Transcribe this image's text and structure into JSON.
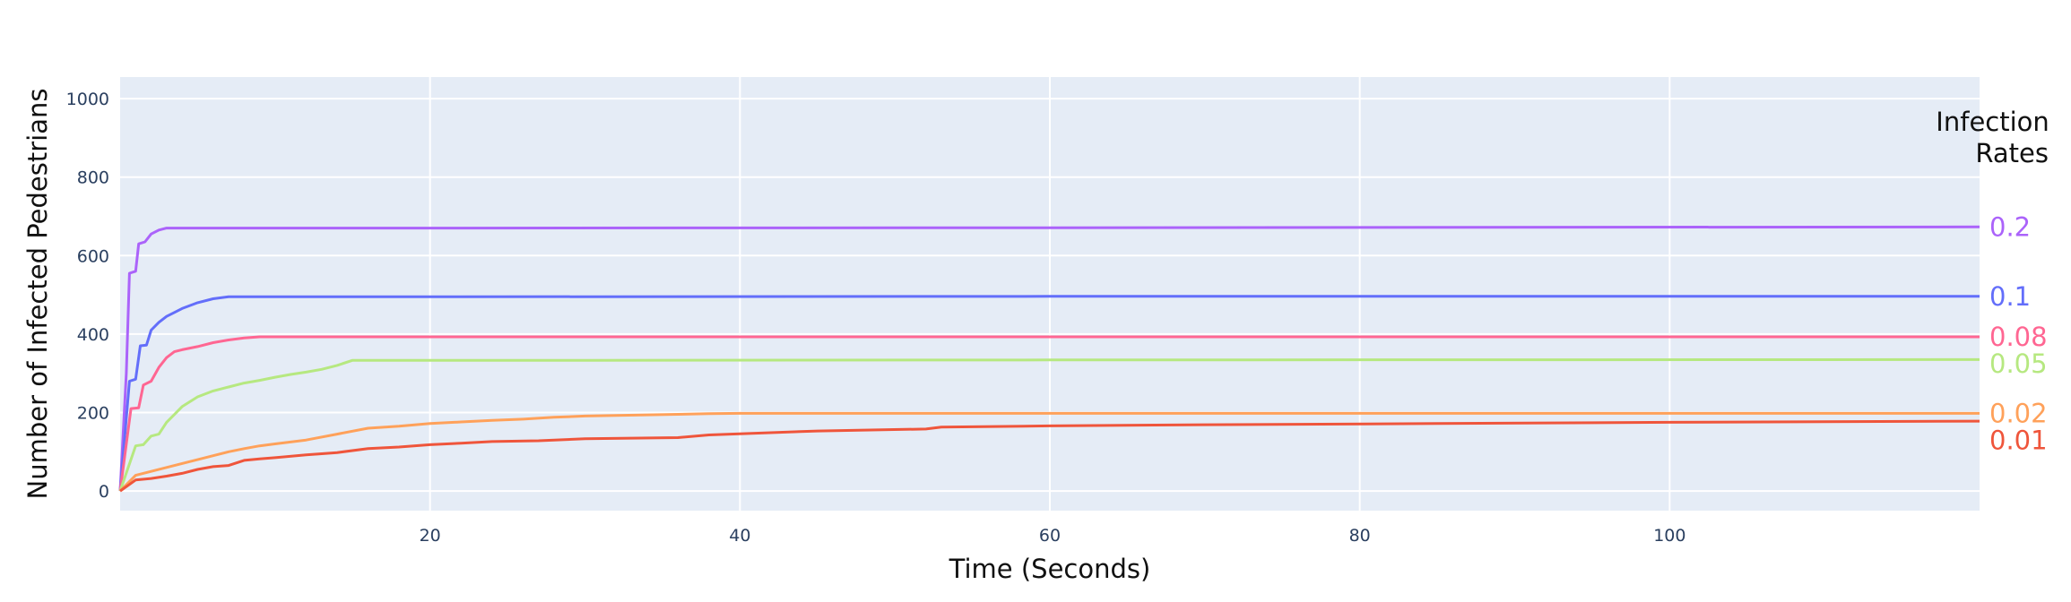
{
  "chart_data": {
    "type": "line",
    "title": "",
    "xlabel": "Time (Seconds)",
    "ylabel": "Number of Infected Pedestrians",
    "xlim": [
      0,
      120
    ],
    "ylim": [
      -50,
      1055
    ],
    "x_ticks": [
      20,
      40,
      60,
      80,
      100
    ],
    "y_ticks": [
      0,
      200,
      400,
      600,
      800,
      1000
    ],
    "grid": true,
    "legend_title": [
      "Infection",
      "Rates"
    ],
    "legend_placement": "right (labels at line ends)",
    "plot_background": "#e5ecf6",
    "series": [
      {
        "name": "0.2",
        "color": "#ab63fa",
        "points": [
          [
            0,
            0
          ],
          [
            0.4,
            300
          ],
          [
            0.6,
            555
          ],
          [
            1.0,
            560
          ],
          [
            1.2,
            630
          ],
          [
            1.6,
            635
          ],
          [
            2.0,
            655
          ],
          [
            2.5,
            665
          ],
          [
            3,
            670
          ],
          [
            20,
            670
          ],
          [
            60,
            671
          ],
          [
            120,
            673
          ]
        ]
      },
      {
        "name": "0.1",
        "color": "#636efa",
        "points": [
          [
            0,
            0
          ],
          [
            0.6,
            280
          ],
          [
            1.0,
            285
          ],
          [
            1.3,
            370
          ],
          [
            1.7,
            372
          ],
          [
            2.0,
            410
          ],
          [
            2.5,
            430
          ],
          [
            3,
            445
          ],
          [
            3.5,
            455
          ],
          [
            4,
            465
          ],
          [
            5,
            480
          ],
          [
            6,
            490
          ],
          [
            7,
            495
          ],
          [
            20,
            495
          ],
          [
            60,
            496
          ],
          [
            120,
            496
          ]
        ]
      },
      {
        "name": "0.08",
        "color": "#ff6692",
        "points": [
          [
            0,
            0
          ],
          [
            0.7,
            210
          ],
          [
            1.2,
            212
          ],
          [
            1.5,
            270
          ],
          [
            2,
            280
          ],
          [
            2.5,
            315
          ],
          [
            3,
            340
          ],
          [
            3.5,
            355
          ],
          [
            4,
            360
          ],
          [
            5,
            368
          ],
          [
            6,
            378
          ],
          [
            7,
            385
          ],
          [
            8,
            390
          ],
          [
            9,
            393
          ],
          [
            20,
            393
          ],
          [
            60,
            393
          ],
          [
            120,
            393
          ]
        ]
      },
      {
        "name": "0.05",
        "color": "#b6e880",
        "points": [
          [
            0,
            0
          ],
          [
            1.0,
            115
          ],
          [
            1.5,
            118
          ],
          [
            2,
            140
          ],
          [
            2.5,
            145
          ],
          [
            3,
            175
          ],
          [
            3.5,
            195
          ],
          [
            4,
            215
          ],
          [
            5,
            240
          ],
          [
            6,
            255
          ],
          [
            7,
            265
          ],
          [
            8,
            275
          ],
          [
            9,
            282
          ],
          [
            10,
            290
          ],
          [
            11,
            297
          ],
          [
            12,
            303
          ],
          [
            13,
            310
          ],
          [
            14,
            320
          ],
          [
            15,
            333
          ],
          [
            30,
            333
          ],
          [
            60,
            334
          ],
          [
            120,
            335
          ]
        ]
      },
      {
        "name": "0.02",
        "color": "#ffa15a",
        "points": [
          [
            0,
            0
          ],
          [
            1,
            40
          ],
          [
            2,
            50
          ],
          [
            3,
            60
          ],
          [
            4,
            70
          ],
          [
            5,
            80
          ],
          [
            6,
            90
          ],
          [
            7,
            100
          ],
          [
            8,
            108
          ],
          [
            9,
            115
          ],
          [
            10,
            120
          ],
          [
            12,
            130
          ],
          [
            14,
            145
          ],
          [
            16,
            160
          ],
          [
            18,
            165
          ],
          [
            20,
            172
          ],
          [
            22,
            176
          ],
          [
            24,
            180
          ],
          [
            26,
            183
          ],
          [
            28,
            188
          ],
          [
            30,
            191
          ],
          [
            34,
            194
          ],
          [
            38,
            197
          ],
          [
            40,
            198
          ],
          [
            60,
            198
          ],
          [
            90,
            198
          ],
          [
            120,
            198
          ]
        ]
      },
      {
        "name": "0.01",
        "color": "#ef553b",
        "points": [
          [
            0,
            0
          ],
          [
            1,
            28
          ],
          [
            2,
            32
          ],
          [
            3,
            38
          ],
          [
            4,
            45
          ],
          [
            5,
            55
          ],
          [
            6,
            62
          ],
          [
            7,
            65
          ],
          [
            8,
            78
          ],
          [
            9,
            82
          ],
          [
            10,
            85
          ],
          [
            12,
            92
          ],
          [
            14,
            98
          ],
          [
            16,
            108
          ],
          [
            18,
            112
          ],
          [
            20,
            118
          ],
          [
            22,
            122
          ],
          [
            24,
            126
          ],
          [
            27,
            128
          ],
          [
            30,
            133
          ],
          [
            36,
            136
          ],
          [
            38,
            143
          ],
          [
            40,
            146
          ],
          [
            45,
            153
          ],
          [
            52,
            158
          ],
          [
            53,
            163
          ],
          [
            60,
            166
          ],
          [
            70,
            169
          ],
          [
            85,
            172
          ],
          [
            100,
            175
          ],
          [
            120,
            178
          ]
        ]
      }
    ]
  }
}
